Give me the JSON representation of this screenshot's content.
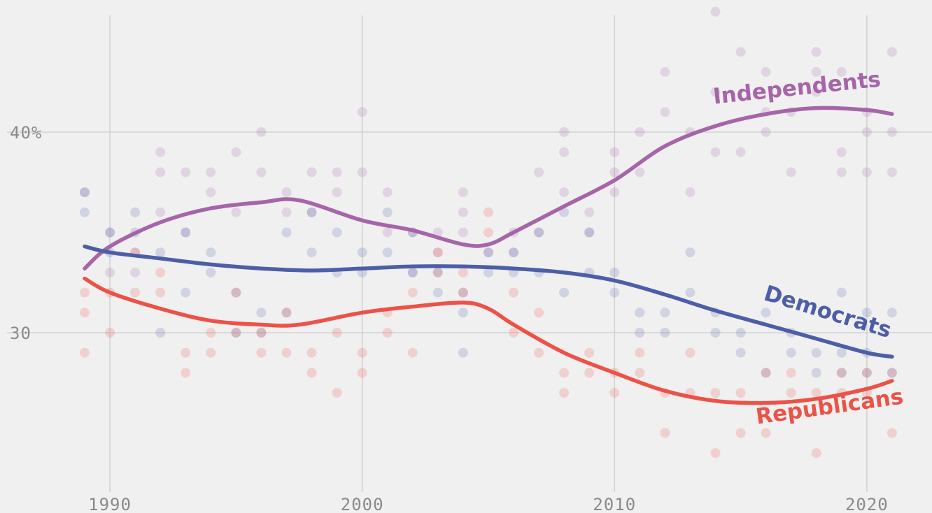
{
  "chart_data": {
    "type": "scatter",
    "title": "",
    "xlabel": "",
    "ylabel": "",
    "xlim": [
      1989,
      2021
    ],
    "ylim": [
      23.5,
      46.5
    ],
    "x_ticks": [
      1990,
      2000,
      2010,
      2020
    ],
    "x_tick_labels": [
      "1990",
      "2000",
      "2010",
      "2020"
    ],
    "y_ticks": [
      30,
      40
    ],
    "y_tick_labels": [
      "30",
      "40%"
    ],
    "grid": true,
    "legend": "inline labels on trend lines",
    "series": [
      {
        "name": "Independents",
        "color": "#a565a8",
        "label_angle": -6,
        "trend": [
          [
            1989,
            33.2
          ],
          [
            1990,
            34.3
          ],
          [
            1992,
            35.5
          ],
          [
            1994,
            36.2
          ],
          [
            1996,
            36.5
          ],
          [
            1997.5,
            36.6
          ],
          [
            2000,
            35.6
          ],
          [
            2002,
            35.1
          ],
          [
            2004,
            34.4
          ],
          [
            2005,
            34.4
          ],
          [
            2006,
            35
          ],
          [
            2008,
            36.3
          ],
          [
            2010,
            37.6
          ],
          [
            2012,
            39.3
          ],
          [
            2014,
            40.3
          ],
          [
            2016,
            40.9
          ],
          [
            2018,
            41.2
          ],
          [
            2020,
            41.1
          ],
          [
            2021,
            40.9
          ]
        ],
        "points": [
          [
            1989,
            37
          ],
          [
            1990,
            35
          ],
          [
            1990,
            33
          ],
          [
            1991,
            34
          ],
          [
            1991,
            33
          ],
          [
            1992,
            36
          ],
          [
            1992,
            38
          ],
          [
            1992,
            39
          ],
          [
            1993,
            35
          ],
          [
            1993,
            38
          ],
          [
            1994,
            38
          ],
          [
            1994,
            37
          ],
          [
            1995,
            39
          ],
          [
            1995,
            36
          ],
          [
            1996,
            38
          ],
          [
            1996,
            40
          ],
          [
            1997,
            37
          ],
          [
            1997,
            36
          ],
          [
            1998,
            36
          ],
          [
            1998,
            38
          ],
          [
            1999,
            37
          ],
          [
            1999,
            38
          ],
          [
            2000,
            38
          ],
          [
            2000,
            41
          ],
          [
            2001,
            37
          ],
          [
            2001,
            35
          ],
          [
            2002,
            35
          ],
          [
            2002,
            33
          ],
          [
            2003,
            35
          ],
          [
            2003,
            34
          ],
          [
            2004,
            36
          ],
          [
            2004,
            35
          ],
          [
            2004,
            37
          ],
          [
            2005,
            34
          ],
          [
            2006,
            34
          ],
          [
            2006,
            35
          ],
          [
            2007,
            35
          ],
          [
            2007,
            38
          ],
          [
            2008,
            37
          ],
          [
            2008,
            40
          ],
          [
            2008,
            39
          ],
          [
            2009,
            36
          ],
          [
            2009,
            35
          ],
          [
            2010,
            37
          ],
          [
            2010,
            38
          ],
          [
            2010,
            39
          ],
          [
            2011,
            40
          ],
          [
            2011,
            38
          ],
          [
            2012,
            43
          ],
          [
            2012,
            41
          ],
          [
            2013,
            40
          ],
          [
            2013,
            37
          ],
          [
            2014,
            42
          ],
          [
            2014,
            39
          ],
          [
            2014,
            46
          ],
          [
            2015,
            44
          ],
          [
            2015,
            39
          ],
          [
            2016,
            43
          ],
          [
            2016,
            41
          ],
          [
            2016,
            40
          ],
          [
            2017,
            41
          ],
          [
            2017,
            38
          ],
          [
            2018,
            43
          ],
          [
            2018,
            44
          ],
          [
            2018,
            42
          ],
          [
            2019,
            38
          ],
          [
            2019,
            39
          ],
          [
            2019,
            43
          ],
          [
            2020,
            40
          ],
          [
            2020,
            41
          ],
          [
            2020,
            38
          ],
          [
            2021,
            38
          ],
          [
            2021,
            40
          ],
          [
            2021,
            44
          ]
        ]
      },
      {
        "name": "Democrats",
        "color": "#4d5ea8",
        "label_angle": 17,
        "trend": [
          [
            1989,
            34.3
          ],
          [
            1990,
            34
          ],
          [
            1992,
            33.7
          ],
          [
            1994,
            33.4
          ],
          [
            1996,
            33.2
          ],
          [
            1998,
            33.1
          ],
          [
            2000,
            33.2
          ],
          [
            2002,
            33.3
          ],
          [
            2004,
            33.3
          ],
          [
            2006,
            33.2
          ],
          [
            2008,
            33
          ],
          [
            2010,
            32.6
          ],
          [
            2012,
            31.9
          ],
          [
            2014,
            31.1
          ],
          [
            2016,
            30.4
          ],
          [
            2018,
            29.7
          ],
          [
            2020,
            29
          ],
          [
            2021,
            28.8
          ]
        ],
        "points": [
          [
            1989,
            37
          ],
          [
            1989,
            36
          ],
          [
            1990,
            35
          ],
          [
            1990,
            34
          ],
          [
            1991,
            36
          ],
          [
            1991,
            35
          ],
          [
            1992,
            30
          ],
          [
            1992,
            34
          ],
          [
            1993,
            32
          ],
          [
            1993,
            35
          ],
          [
            1994,
            34
          ],
          [
            1994,
            33
          ],
          [
            1995,
            32
          ],
          [
            1995,
            30
          ],
          [
            1996,
            31
          ],
          [
            1996,
            30
          ],
          [
            1997,
            31
          ],
          [
            1997,
            35
          ],
          [
            1998,
            34
          ],
          [
            1998,
            36
          ],
          [
            1999,
            33
          ],
          [
            1999,
            35
          ],
          [
            2000,
            34
          ],
          [
            2000,
            33
          ],
          [
            2001,
            36
          ],
          [
            2001,
            34
          ],
          [
            2002,
            33
          ],
          [
            2002,
            35
          ],
          [
            2003,
            32
          ],
          [
            2003,
            33
          ],
          [
            2004,
            31
          ],
          [
            2004,
            32
          ],
          [
            2004,
            29
          ],
          [
            2005,
            34
          ],
          [
            2005,
            33
          ],
          [
            2006,
            33
          ],
          [
            2006,
            34
          ],
          [
            2007,
            35
          ],
          [
            2007,
            33
          ],
          [
            2008,
            36
          ],
          [
            2008,
            32
          ],
          [
            2009,
            35
          ],
          [
            2009,
            33
          ],
          [
            2010,
            33
          ],
          [
            2010,
            32
          ],
          [
            2011,
            31
          ],
          [
            2011,
            30
          ],
          [
            2012,
            30
          ],
          [
            2012,
            31
          ],
          [
            2013,
            32
          ],
          [
            2013,
            34
          ],
          [
            2014,
            30
          ],
          [
            2014,
            31
          ],
          [
            2015,
            30
          ],
          [
            2015,
            29
          ],
          [
            2016,
            31
          ],
          [
            2016,
            28
          ],
          [
            2017,
            30
          ],
          [
            2017,
            29
          ],
          [
            2018,
            29
          ],
          [
            2018,
            28
          ],
          [
            2019,
            29
          ],
          [
            2019,
            32
          ],
          [
            2019,
            28
          ],
          [
            2020,
            31
          ],
          [
            2020,
            29
          ],
          [
            2020,
            28
          ],
          [
            2021,
            31
          ],
          [
            2021,
            28
          ]
        ]
      },
      {
        "name": "Republicans",
        "color": "#ec5247",
        "label_angle": -8,
        "trend": [
          [
            1989,
            32.7
          ],
          [
            1990,
            32
          ],
          [
            1992,
            31.2
          ],
          [
            1994,
            30.6
          ],
          [
            1996,
            30.4
          ],
          [
            1997.5,
            30.4
          ],
          [
            2000,
            31
          ],
          [
            2002,
            31.3
          ],
          [
            2004,
            31.5
          ],
          [
            2005,
            31.2
          ],
          [
            2006,
            30.4
          ],
          [
            2008,
            29
          ],
          [
            2010,
            28
          ],
          [
            2012,
            27.1
          ],
          [
            2014,
            26.6
          ],
          [
            2016,
            26.5
          ],
          [
            2018,
            26.7
          ],
          [
            2020,
            27.2
          ],
          [
            2021,
            27.6
          ]
        ],
        "points": [
          [
            1989,
            32
          ],
          [
            1989,
            31
          ],
          [
            1989,
            29
          ],
          [
            1990,
            30
          ],
          [
            1990,
            32
          ],
          [
            1991,
            32
          ],
          [
            1991,
            34
          ],
          [
            1992,
            33
          ],
          [
            1992,
            32
          ],
          [
            1993,
            28
          ],
          [
            1993,
            29
          ],
          [
            1994,
            29
          ],
          [
            1994,
            30
          ],
          [
            1995,
            32
          ],
          [
            1995,
            30
          ],
          [
            1996,
            29
          ],
          [
            1996,
            30
          ],
          [
            1997,
            31
          ],
          [
            1997,
            29
          ],
          [
            1998,
            29
          ],
          [
            1998,
            28
          ],
          [
            1999,
            30
          ],
          [
            1999,
            27
          ],
          [
            2000,
            29
          ],
          [
            2000,
            28
          ],
          [
            2001,
            30
          ],
          [
            2001,
            31
          ],
          [
            2002,
            32
          ],
          [
            2002,
            29
          ],
          [
            2003,
            33
          ],
          [
            2003,
            34
          ],
          [
            2004,
            33
          ],
          [
            2004,
            32
          ],
          [
            2005,
            36
          ],
          [
            2005,
            35
          ],
          [
            2006,
            32
          ],
          [
            2006,
            30
          ],
          [
            2007,
            31
          ],
          [
            2007,
            29
          ],
          [
            2008,
            28
          ],
          [
            2008,
            27
          ],
          [
            2009,
            28
          ],
          [
            2009,
            29
          ],
          [
            2010,
            27
          ],
          [
            2010,
            28
          ],
          [
            2011,
            28
          ],
          [
            2011,
            29
          ],
          [
            2012,
            27
          ],
          [
            2012,
            25
          ],
          [
            2013,
            27
          ],
          [
            2013,
            29
          ],
          [
            2014,
            27
          ],
          [
            2014,
            24
          ],
          [
            2015,
            25
          ],
          [
            2015,
            27
          ],
          [
            2016,
            28
          ],
          [
            2016,
            25
          ],
          [
            2017,
            27
          ],
          [
            2017,
            28
          ],
          [
            2018,
            27
          ],
          [
            2018,
            24
          ],
          [
            2019,
            27
          ],
          [
            2019,
            28
          ],
          [
            2020,
            27
          ],
          [
            2020,
            28
          ],
          [
            2021,
            25
          ],
          [
            2021,
            28
          ]
        ]
      }
    ]
  }
}
